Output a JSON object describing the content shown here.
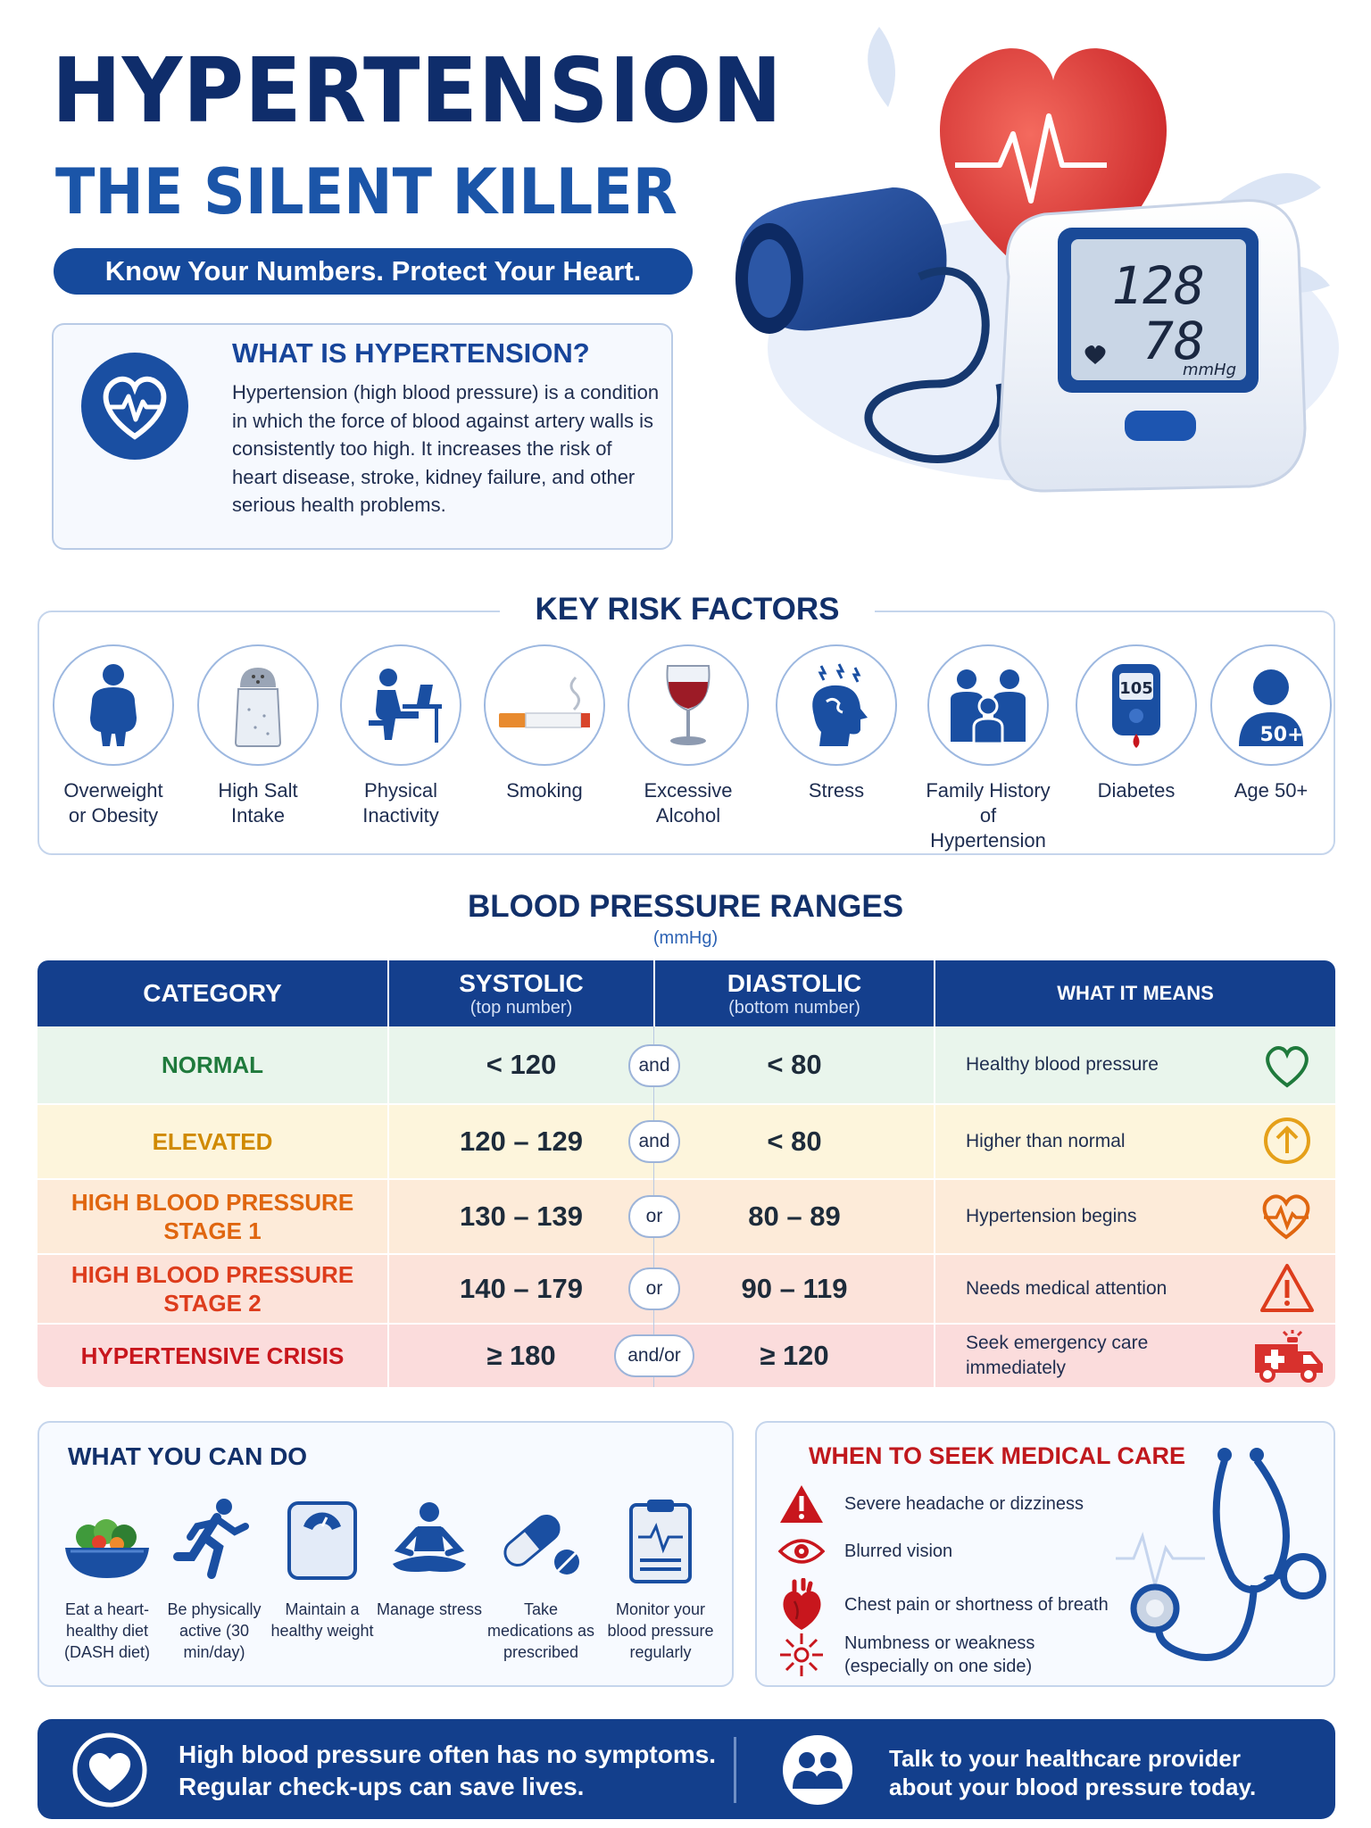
{
  "header": {
    "title": "HYPERTENSION",
    "subtitle": "THE SILENT KILLER",
    "tagline": "Know Your Numbers. Protect Your Heart."
  },
  "monitor": {
    "systolic": "128",
    "diastolic": "78",
    "unit": "mmHg"
  },
  "what_is": {
    "title": "WHAT IS HYPERTENSION?",
    "text": "Hypertension (high blood pressure) is a condition in which the force of blood against artery walls is consistently too high. It increases the risk of heart disease, stroke, kidney failure, and other serious health problems."
  },
  "risk_factors": {
    "title": "KEY RISK FACTORS",
    "items": [
      {
        "line1": "Overweight",
        "line2": "or Obesity",
        "icon": "person-overweight-icon"
      },
      {
        "line1": "High Salt",
        "line2": "Intake",
        "icon": "salt-shaker-icon"
      },
      {
        "line1": "Physical",
        "line2": "Inactivity",
        "icon": "person-at-desk-icon"
      },
      {
        "line1": "Smoking",
        "line2": "",
        "icon": "cigarette-icon"
      },
      {
        "line1": "Excessive",
        "line2": "Alcohol",
        "icon": "wine-glass-icon"
      },
      {
        "line1": "Stress",
        "line2": "",
        "icon": "stressed-head-icon"
      },
      {
        "line1": "Family History",
        "line2": "of Hypertension",
        "icon": "family-icon"
      },
      {
        "line1": "Diabetes",
        "line2": "",
        "icon": "glucose-meter-icon",
        "meter_value": "105"
      },
      {
        "line1": "Age 50+",
        "line2": "",
        "icon": "person-age-icon",
        "badge": "50+"
      }
    ]
  },
  "bp_ranges": {
    "title": "BLOOD PRESSURE RANGES",
    "unit": "(mmHg)",
    "headers": {
      "category": "CATEGORY",
      "systolic": "SYSTOLIC",
      "systolic_sub": "(top number)",
      "diastolic": "DIASTOLIC",
      "diastolic_sub": "(bottom number)",
      "means": "WHAT IT MEANS"
    },
    "rows": [
      {
        "category_1": "NORMAL",
        "category_2": "",
        "systolic": "< 120",
        "connector": "and",
        "diastolic": "< 80",
        "means": "Healthy blood pressure",
        "means_2": "",
        "color": "#1f7a3c",
        "bg": "#e9f5ec",
        "icon": "heart-outline-icon"
      },
      {
        "category_1": "ELEVATED",
        "category_2": "",
        "systolic": "120 – 129",
        "connector": "and",
        "diastolic": "< 80",
        "means": "Higher than normal",
        "means_2": "",
        "color": "#d08a00",
        "bg": "#fdf5dc",
        "icon": "arrow-up-circle-icon"
      },
      {
        "category_1": "HIGH BLOOD PRESSURE",
        "category_2": "STAGE 1",
        "systolic": "130 – 139",
        "connector": "or",
        "diastolic": "80 – 89",
        "means": "Hypertension begins",
        "means_2": "",
        "color": "#e0660f",
        "bg": "#fdebd9",
        "icon": "heart-pulse-icon"
      },
      {
        "category_1": "HIGH BLOOD PRESSURE",
        "category_2": "STAGE 2",
        "systolic": "140 – 179",
        "connector": "or",
        "diastolic": "90 – 119",
        "means": "Needs medical attention",
        "means_2": "",
        "color": "#dd3c1c",
        "bg": "#fce3da",
        "icon": "warning-triangle-icon"
      },
      {
        "category_1": "HYPERTENSIVE CRISIS",
        "category_2": "",
        "systolic": "≥ 180",
        "connector": "and/or",
        "diastolic": "≥ 120",
        "means": "Seek emergency care",
        "means_2": "immediately",
        "color": "#c8161d",
        "bg": "#fbdcdc",
        "icon": "ambulance-icon"
      }
    ]
  },
  "what_you_can_do": {
    "title": "WHAT YOU CAN DO",
    "items": [
      {
        "text": "Eat a heart-healthy diet (DASH diet)",
        "icon": "salad-bowl-icon"
      },
      {
        "text": "Be physically active (30 min/day)",
        "icon": "runner-icon"
      },
      {
        "text": "Maintain a healthy weight",
        "icon": "scale-icon"
      },
      {
        "text": "Manage stress",
        "icon": "meditation-icon"
      },
      {
        "text": "Take medications as prescribed",
        "icon": "pill-icon"
      },
      {
        "text": "Monitor your blood pressure regularly",
        "icon": "clipboard-icon"
      }
    ]
  },
  "seek_care": {
    "title": "WHEN TO SEEK MEDICAL CARE",
    "items": [
      {
        "text": "Severe headache or dizziness",
        "text_2": "",
        "icon": "warning-icon"
      },
      {
        "text": "Blurred vision",
        "text_2": "",
        "icon": "eye-icon"
      },
      {
        "text": "Chest pain or shortness of breath",
        "text_2": "",
        "icon": "heart-organ-icon"
      },
      {
        "text": "Numbness or weakness",
        "text_2": "(especially on one side)",
        "icon": "numbness-icon"
      }
    ]
  },
  "footer": {
    "left_1": "High blood pressure often has no symptoms.",
    "left_2": "Regular check-ups can save lives.",
    "right_1": "Talk to your healthcare provider",
    "right_2": "about your blood pressure today."
  },
  "colors": {
    "navy": "#143f8d",
    "title_navy": "#0f2d6b",
    "accent_blue": "#1b55a8",
    "heart_red": "#d8312d",
    "danger_red": "#c0181d"
  }
}
